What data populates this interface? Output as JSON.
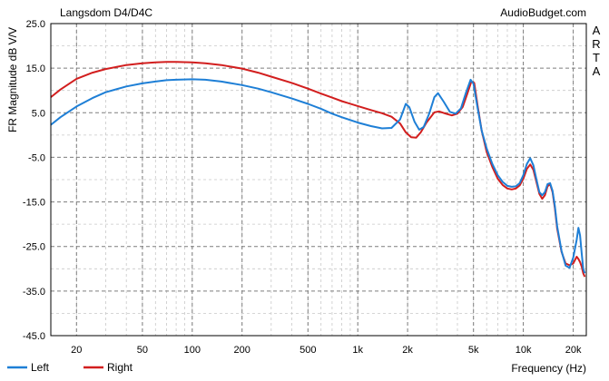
{
  "chart_data": {
    "type": "line",
    "title": "Langsdom D4/D4C",
    "watermark": "AudioBudget.com",
    "side_label": "ARTA",
    "xlabel": "Frequency (Hz)",
    "ylabel": "FR Magnitude dB V/V",
    "x_scale": "log",
    "xlim": [
      14,
      24000
    ],
    "ylim": [
      -45,
      25
    ],
    "grid": true,
    "legend_position": "bottom-left",
    "y_ticks": [
      {
        "value": 25,
        "label": "25.0"
      },
      {
        "value": 15,
        "label": "15.0"
      },
      {
        "value": 5,
        "label": "5.0"
      },
      {
        "value": -5,
        "label": "-5.0"
      },
      {
        "value": -15,
        "label": "-15.0"
      },
      {
        "value": -25,
        "label": "-25.0"
      },
      {
        "value": -35,
        "label": "-35.0"
      },
      {
        "value": -45,
        "label": "-45.0"
      }
    ],
    "x_ticks": [
      {
        "value": 20,
        "label": "20"
      },
      {
        "value": 50,
        "label": "50"
      },
      {
        "value": 100,
        "label": "100"
      },
      {
        "value": 200,
        "label": "200"
      },
      {
        "value": 500,
        "label": "500"
      },
      {
        "value": 1000,
        "label": "1k"
      },
      {
        "value": 2000,
        "label": "2k"
      },
      {
        "value": 5000,
        "label": "5k"
      },
      {
        "value": 10000,
        "label": "10k"
      },
      {
        "value": 20000,
        "label": "20k"
      }
    ],
    "series": [
      {
        "name": "Left",
        "color": "#1e7fd6",
        "points": [
          [
            14,
            2.3
          ],
          [
            16,
            4.0
          ],
          [
            20,
            6.4
          ],
          [
            25,
            8.3
          ],
          [
            30,
            9.6
          ],
          [
            40,
            10.9
          ],
          [
            50,
            11.6
          ],
          [
            60,
            12.0
          ],
          [
            70,
            12.3
          ],
          [
            80,
            12.4
          ],
          [
            100,
            12.5
          ],
          [
            120,
            12.4
          ],
          [
            150,
            12.0
          ],
          [
            200,
            11.2
          ],
          [
            250,
            10.4
          ],
          [
            300,
            9.6
          ],
          [
            400,
            8.2
          ],
          [
            500,
            7.0
          ],
          [
            600,
            5.9
          ],
          [
            700,
            4.8
          ],
          [
            800,
            4.0
          ],
          [
            1000,
            2.8
          ],
          [
            1200,
            2.0
          ],
          [
            1400,
            1.5
          ],
          [
            1600,
            1.6
          ],
          [
            1800,
            3.5
          ],
          [
            1950,
            7.0
          ],
          [
            2050,
            6.2
          ],
          [
            2200,
            3.0
          ],
          [
            2350,
            1.2
          ],
          [
            2500,
            1.8
          ],
          [
            2700,
            4.8
          ],
          [
            2900,
            8.5
          ],
          [
            3050,
            9.4
          ],
          [
            3300,
            7.5
          ],
          [
            3600,
            5.2
          ],
          [
            3900,
            4.8
          ],
          [
            4200,
            6.0
          ],
          [
            4500,
            9.5
          ],
          [
            4800,
            12.4
          ],
          [
            5000,
            11.5
          ],
          [
            5300,
            6.0
          ],
          [
            5600,
            1.0
          ],
          [
            6000,
            -3.0
          ],
          [
            6500,
            -6.5
          ],
          [
            7000,
            -9.0
          ],
          [
            7500,
            -10.5
          ],
          [
            8000,
            -11.4
          ],
          [
            8500,
            -11.6
          ],
          [
            9000,
            -11.5
          ],
          [
            9500,
            -10.8
          ],
          [
            10000,
            -9.0
          ],
          [
            10500,
            -6.5
          ],
          [
            11000,
            -5.2
          ],
          [
            11500,
            -6.8
          ],
          [
            12000,
            -10.0
          ],
          [
            12500,
            -12.8
          ],
          [
            13000,
            -13.5
          ],
          [
            13500,
            -12.8
          ],
          [
            14000,
            -11.0
          ],
          [
            14500,
            -10.8
          ],
          [
            15000,
            -12.5
          ],
          [
            15500,
            -16.0
          ],
          [
            16000,
            -20.5
          ],
          [
            17000,
            -26.0
          ],
          [
            18000,
            -29.3
          ],
          [
            19000,
            -29.8
          ],
          [
            20000,
            -27.5
          ],
          [
            21000,
            -23.5
          ],
          [
            21500,
            -20.8
          ],
          [
            22000,
            -22.5
          ],
          [
            22500,
            -26.5
          ],
          [
            23000,
            -30.0
          ],
          [
            23500,
            -31.0
          ]
        ]
      },
      {
        "name": "Right",
        "color": "#d21e1e",
        "points": [
          [
            14,
            8.5
          ],
          [
            16,
            10.2
          ],
          [
            20,
            12.6
          ],
          [
            25,
            14.0
          ],
          [
            30,
            14.8
          ],
          [
            40,
            15.7
          ],
          [
            50,
            16.1
          ],
          [
            60,
            16.3
          ],
          [
            70,
            16.4
          ],
          [
            80,
            16.4
          ],
          [
            100,
            16.3
          ],
          [
            120,
            16.1
          ],
          [
            150,
            15.7
          ],
          [
            200,
            14.9
          ],
          [
            250,
            14.0
          ],
          [
            300,
            13.1
          ],
          [
            400,
            11.7
          ],
          [
            500,
            10.4
          ],
          [
            600,
            9.3
          ],
          [
            700,
            8.4
          ],
          [
            800,
            7.6
          ],
          [
            1000,
            6.5
          ],
          [
            1200,
            5.6
          ],
          [
            1400,
            4.9
          ],
          [
            1600,
            4.1
          ],
          [
            1800,
            2.6
          ],
          [
            1950,
            0.6
          ],
          [
            2100,
            -0.5
          ],
          [
            2250,
            -0.6
          ],
          [
            2400,
            0.6
          ],
          [
            2600,
            2.8
          ],
          [
            2900,
            5.1
          ],
          [
            3100,
            5.3
          ],
          [
            3400,
            4.8
          ],
          [
            3700,
            4.4
          ],
          [
            4000,
            4.8
          ],
          [
            4300,
            6.3
          ],
          [
            4600,
            9.4
          ],
          [
            4850,
            12.0
          ],
          [
            5050,
            11.7
          ],
          [
            5300,
            6.5
          ],
          [
            5600,
            1.0
          ],
          [
            6000,
            -3.8
          ],
          [
            6500,
            -7.2
          ],
          [
            7000,
            -9.8
          ],
          [
            7500,
            -11.2
          ],
          [
            8000,
            -12.0
          ],
          [
            8500,
            -12.2
          ],
          [
            9000,
            -12.0
          ],
          [
            9500,
            -11.3
          ],
          [
            10000,
            -9.8
          ],
          [
            10500,
            -7.6
          ],
          [
            11000,
            -6.6
          ],
          [
            11500,
            -7.8
          ],
          [
            12000,
            -10.6
          ],
          [
            12500,
            -13.2
          ],
          [
            13000,
            -14.3
          ],
          [
            13500,
            -13.5
          ],
          [
            14000,
            -11.5
          ],
          [
            14500,
            -11.0
          ],
          [
            15000,
            -12.8
          ],
          [
            15500,
            -16.5
          ],
          [
            16000,
            -21.0
          ],
          [
            17000,
            -26.2
          ],
          [
            18000,
            -28.8
          ],
          [
            19000,
            -29.2
          ],
          [
            20000,
            -28.8
          ],
          [
            21000,
            -27.3
          ],
          [
            21500,
            -27.8
          ],
          [
            22000,
            -28.5
          ],
          [
            22500,
            -29.5
          ],
          [
            23000,
            -31.0
          ],
          [
            23500,
            -31.8
          ]
        ]
      }
    ]
  }
}
